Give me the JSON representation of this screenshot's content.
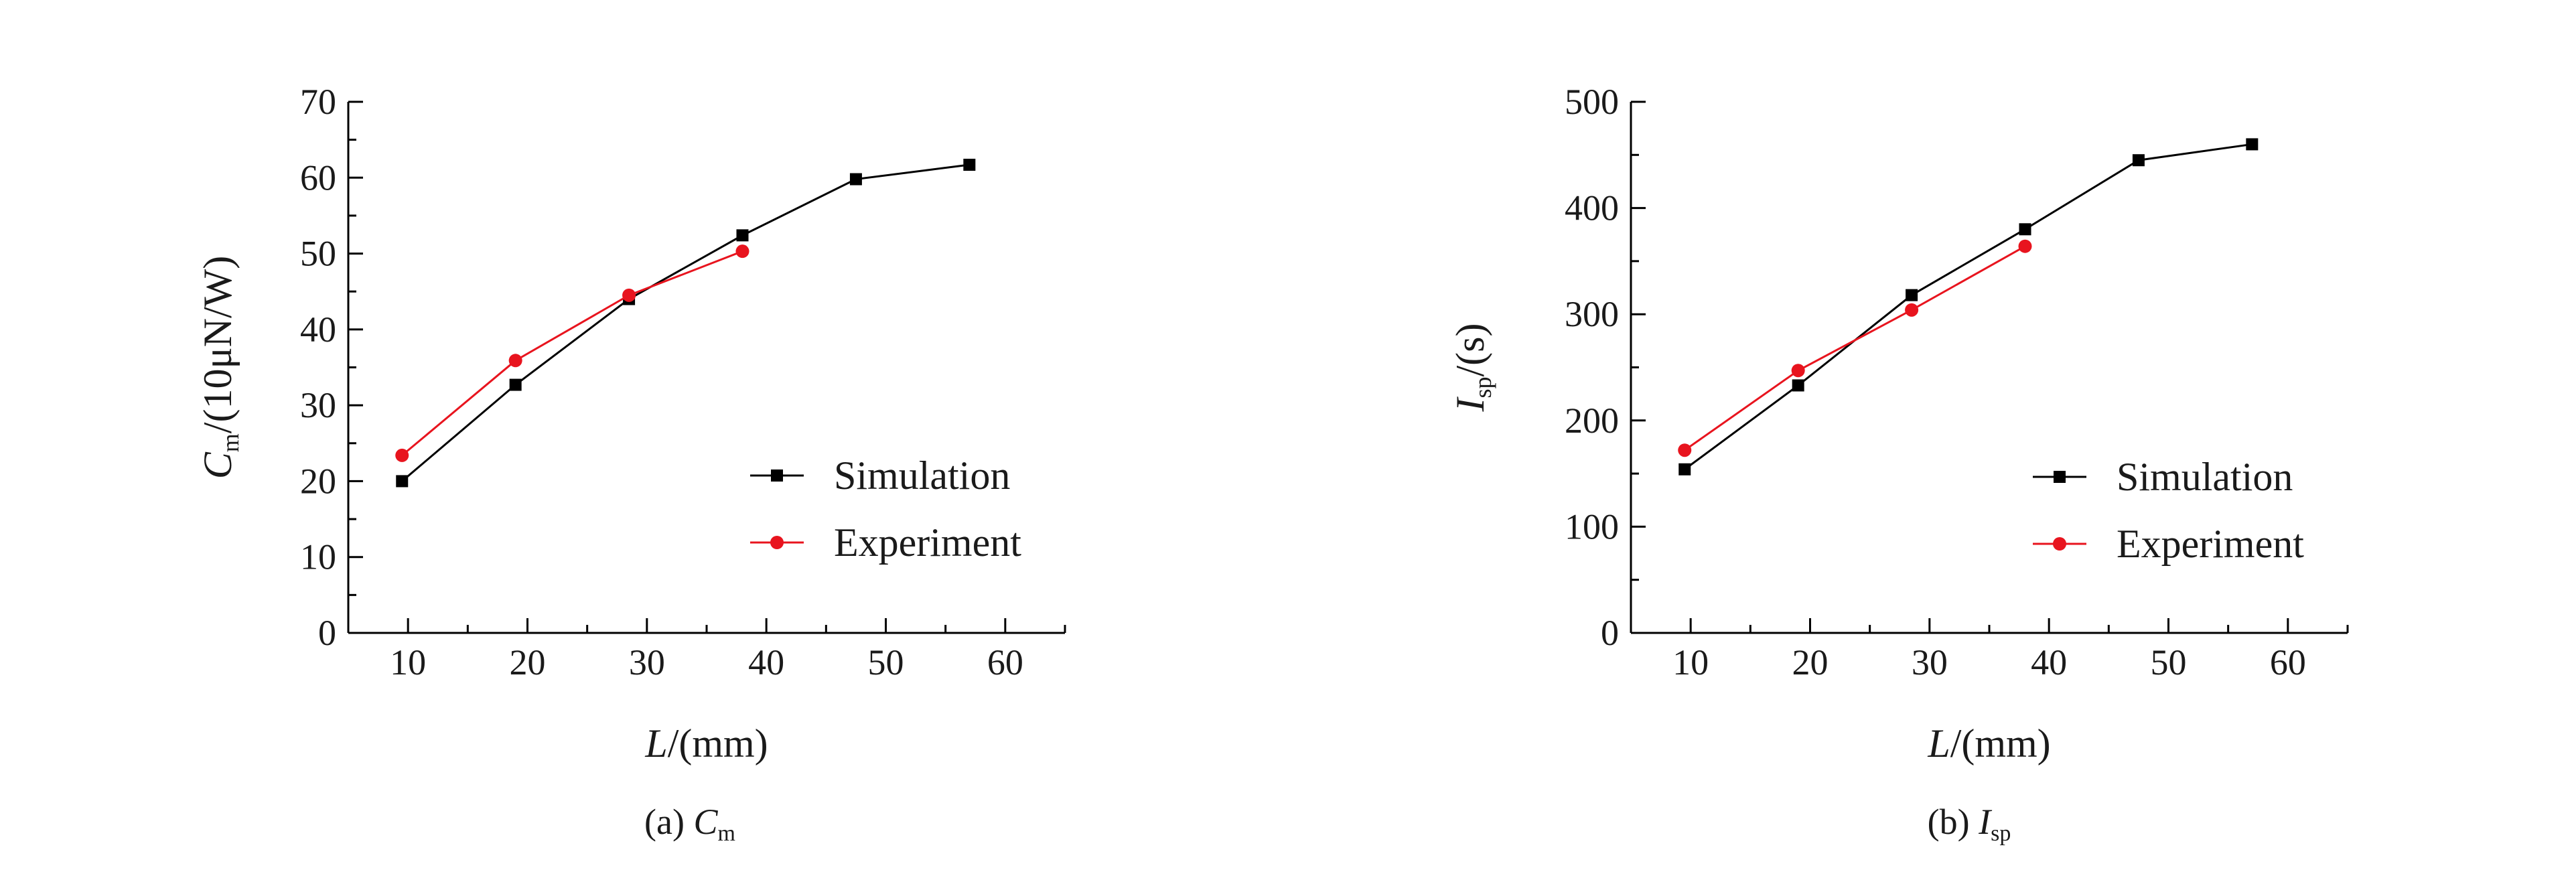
{
  "chart_data": [
    {
      "type": "line",
      "xlabel": "L/(mm)",
      "ylabel": "Cm/(10μN/W)",
      "caption": "(a) Cm",
      "xlim": [
        5,
        65
      ],
      "ylim": [
        0,
        70
      ],
      "xticks": [
        10,
        20,
        30,
        40,
        50,
        60
      ],
      "yticks": [
        0,
        10,
        20,
        30,
        40,
        50,
        60,
        70
      ],
      "grid": false,
      "legend_position": "lower-right",
      "series": [
        {
          "name": "Simulation",
          "color": "#000000",
          "marker": "square",
          "x": [
            9.5,
            19.0,
            28.5,
            38.0,
            47.5,
            57.0
          ],
          "y": [
            20.0,
            32.7,
            44.0,
            52.4,
            59.8,
            61.7
          ]
        },
        {
          "name": "Experiment",
          "color": "#e8141e",
          "marker": "circle",
          "x": [
            9.5,
            19.0,
            28.5,
            38.0
          ],
          "y": [
            23.4,
            35.9,
            44.5,
            50.3
          ]
        }
      ]
    },
    {
      "type": "line",
      "xlabel": "L/(mm)",
      "ylabel": "Isp/(s)",
      "caption": "(b) Isp",
      "xlim": [
        5,
        65
      ],
      "ylim": [
        0,
        500
      ],
      "xticks": [
        10,
        20,
        30,
        40,
        50,
        60
      ],
      "yticks": [
        0,
        100,
        200,
        300,
        400,
        500
      ],
      "grid": false,
      "legend_position": "lower-right",
      "series": [
        {
          "name": "Simulation",
          "color": "#000000",
          "marker": "square",
          "x": [
            9.5,
            19.0,
            28.5,
            38.0,
            47.5,
            57.0
          ],
          "y": [
            154,
            233,
            318,
            380,
            445,
            460
          ]
        },
        {
          "name": "Experiment",
          "color": "#e8141e",
          "marker": "circle",
          "x": [
            9.5,
            19.0,
            28.5,
            38.0
          ],
          "y": [
            172,
            247,
            304,
            364
          ]
        }
      ]
    }
  ]
}
